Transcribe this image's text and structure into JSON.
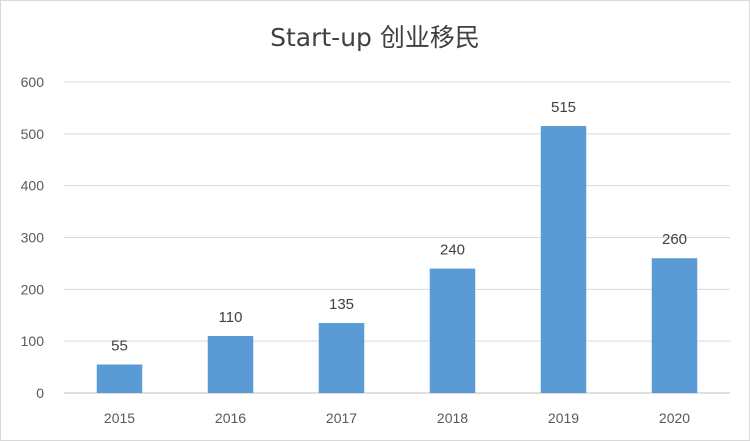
{
  "chart_data": {
    "type": "bar",
    "title": "Start-up 创业移民",
    "categories": [
      "2015",
      "2016",
      "2017",
      "2018",
      "2019",
      "2020"
    ],
    "values": [
      55,
      110,
      135,
      240,
      515,
      260
    ],
    "ylim": [
      0,
      600
    ],
    "yticks": [
      0,
      100,
      200,
      300,
      400,
      500,
      600
    ],
    "grid": true,
    "legend": "none",
    "data_labels": true,
    "colors": {
      "bar": "#5b9bd5",
      "grid": "#d9d9d9",
      "axis": "#bfbfbf"
    }
  }
}
